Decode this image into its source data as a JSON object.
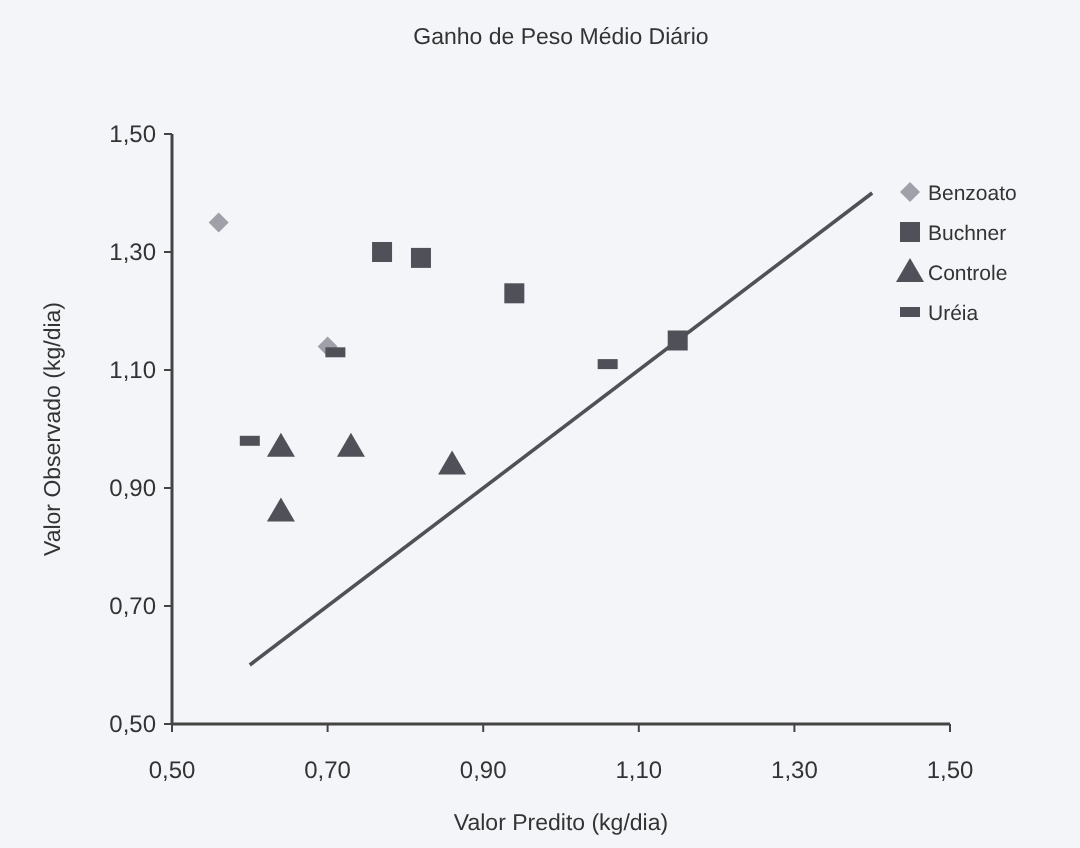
{
  "chart_data": {
    "type": "scatter",
    "title": "Ganho de Peso Médio Diário",
    "xlabel": "Valor Predito (kg/dia)",
    "ylabel": "Valor Observado (kg/dia)",
    "xlim": [
      0.5,
      1.5
    ],
    "ylim": [
      0.5,
      1.5
    ],
    "xticks": [
      {
        "value": 0.5,
        "label": "0,50"
      },
      {
        "value": 0.7,
        "label": "0,70"
      },
      {
        "value": 0.9,
        "label": "0,90"
      },
      {
        "value": 1.1,
        "label": "1,10"
      },
      {
        "value": 1.3,
        "label": "1,30"
      },
      {
        "value": 1.5,
        "label": "1,50"
      }
    ],
    "yticks": [
      {
        "value": 0.5,
        "label": "0,50"
      },
      {
        "value": 0.7,
        "label": "0,70"
      },
      {
        "value": 0.9,
        "label": "0,90"
      },
      {
        "value": 1.1,
        "label": "1,10"
      },
      {
        "value": 1.3,
        "label": "1,30"
      },
      {
        "value": 1.5,
        "label": "1,50"
      }
    ],
    "grid": false,
    "legend": "top right",
    "series": [
      {
        "name": "Benzoato",
        "color": "#a0a0a8",
        "marker": "diamond",
        "x": [
          0.56,
          0.7
        ],
        "values": [
          1.35,
          1.14
        ]
      },
      {
        "name": "Buchner",
        "color": "#505058",
        "marker": "square",
        "x": [
          0.77,
          0.82,
          0.94,
          1.15
        ],
        "values": [
          1.3,
          1.29,
          1.23,
          1.15
        ]
      },
      {
        "name": "Controle",
        "color": "#505058",
        "marker": "triangle",
        "x": [
          0.64,
          0.73,
          0.86,
          0.64
        ],
        "values": [
          0.97,
          0.97,
          0.94,
          0.86
        ]
      },
      {
        "name": "Uréia",
        "color": "#505058",
        "x": [
          0.6,
          0.71,
          1.06
        ],
        "values": [
          0.98,
          1.13,
          1.11
        ]
      },
      {
        "type": "line",
        "color": "#505058",
        "marker": "none",
        "x": [
          0.6,
          1.4
        ],
        "values": [
          0.6,
          1.4
        ]
      }
    ]
  }
}
